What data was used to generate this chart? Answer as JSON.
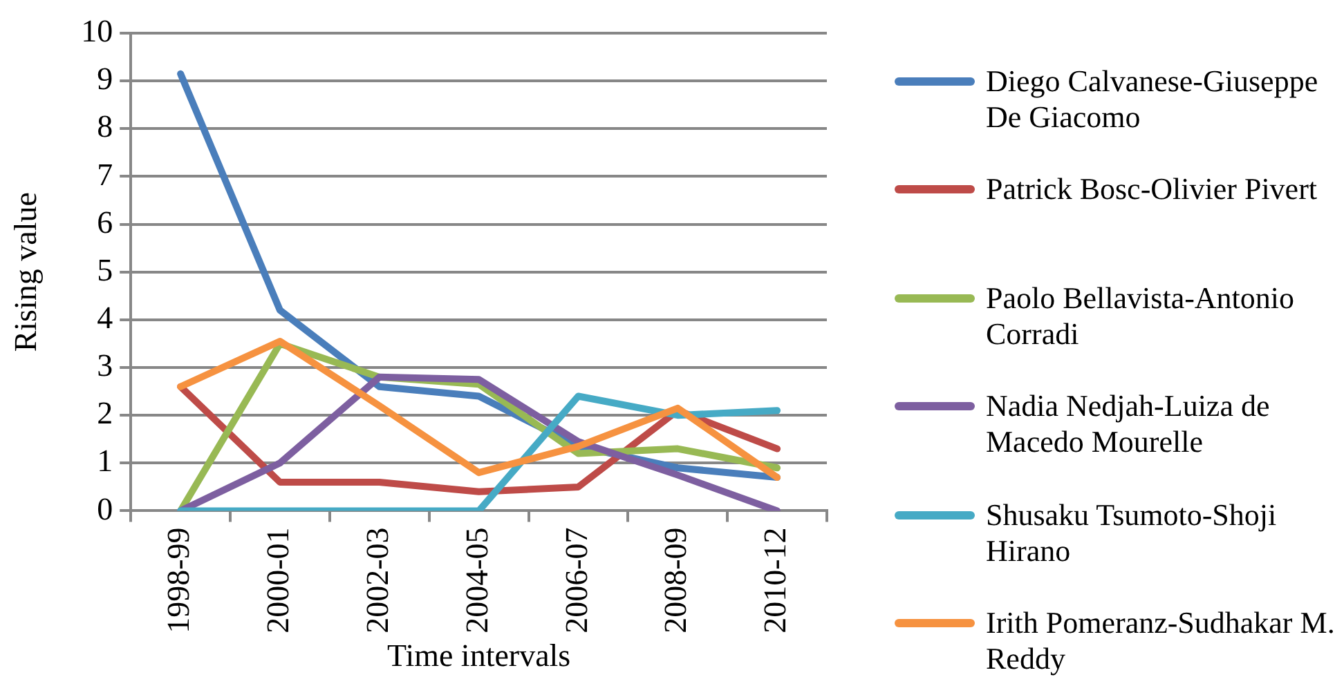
{
  "chart_data": {
    "type": "line",
    "xlabel": "Time intervals",
    "ylabel": "Rising value",
    "categories": [
      "1998-99",
      "2000-01",
      "2002-03",
      "2004-05",
      "2006-07",
      "2008-09",
      "2010-12"
    ],
    "series": [
      {
        "name": "Diego Calvanese-Giuseppe De Giacomo",
        "color": "#4a7ebb",
        "values": [
          9.15,
          4.2,
          2.6,
          2.4,
          1.35,
          0.9,
          0.7
        ]
      },
      {
        "name": "Patrick Bosc-Olivier Pivert",
        "color": "#be4b48",
        "values": [
          2.6,
          0.6,
          0.6,
          0.4,
          0.5,
          2.1,
          1.3
        ]
      },
      {
        "name": "Paolo Bellavista-Antonio Corradi",
        "color": "#98b954",
        "values": [
          0,
          3.5,
          2.8,
          2.65,
          1.2,
          1.3,
          0.9
        ]
      },
      {
        "name": "Nadia Nedjah-Luiza de Macedo Mourelle",
        "color": "#7d5fa0",
        "values": [
          0,
          1.0,
          2.8,
          2.75,
          1.45,
          0.75,
          0
        ]
      },
      {
        "name": "Shusaku Tsumoto-Shoji Hirano",
        "color": "#46aac5",
        "values": [
          0,
          0,
          0,
          0,
          2.4,
          2.0,
          2.1
        ]
      },
      {
        "name": "Irith Pomeranz-Sudhakar M. Reddy",
        "color": "#f69240",
        "values": [
          2.6,
          3.55,
          2.2,
          0.8,
          1.35,
          2.15,
          0.7
        ]
      }
    ],
    "ylim": [
      0,
      10
    ],
    "yticks": [
      0,
      1,
      2,
      3,
      4,
      5,
      6,
      7,
      8,
      9,
      10
    ],
    "grid": "y",
    "legend": "right",
    "marker": "none",
    "line_style": "solid"
  }
}
